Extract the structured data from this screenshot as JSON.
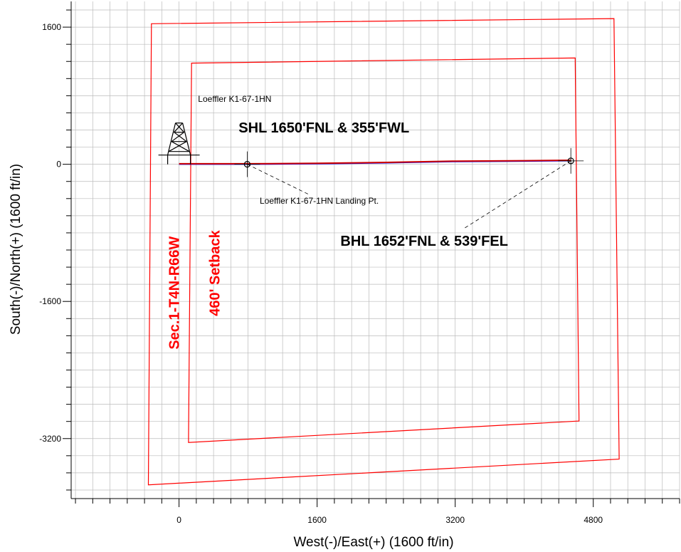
{
  "chart_data": {
    "type": "scatter",
    "xlabel": "West(-)/East(+) (1600 ft/in)",
    "ylabel": "South(-)/North(+) (1600 ft/in)",
    "x_range": [
      -1250,
      5800
    ],
    "y_range": [
      -3900,
      1900
    ],
    "x_ticks": [
      0,
      1600,
      3200,
      4800
    ],
    "y_ticks": [
      1600,
      0,
      -1600,
      -3200
    ],
    "grid": true,
    "colors": {
      "section": "#ff0000",
      "setback": "#ff0000",
      "plan": "#0000ff",
      "actual": "#cc0000",
      "grid": "#bbbbbb"
    },
    "series": [
      {
        "name": "Sec.1-T4N-R66W",
        "closed": true,
        "x": [
          -320,
          5040,
          5100,
          -355
        ],
        "y": [
          1640,
          1700,
          -3440,
          -3740
        ]
      },
      {
        "name": "460' Setback",
        "closed": true,
        "x": [
          145,
          4590,
          4635,
          110
        ],
        "y": [
          1180,
          1240,
          -2995,
          -3245
        ]
      },
      {
        "name": "Loeffler K1-67-1HN",
        "x": [
          0,
          790,
          1600,
          2400,
          3200,
          4000,
          4540
        ],
        "y": [
          0,
          0,
          5,
          15,
          30,
          35,
          40
        ]
      }
    ],
    "markers": [
      {
        "name": "surface-location",
        "x": 0,
        "y": 0
      },
      {
        "name": "landing-point",
        "x": 790,
        "y": 0
      },
      {
        "name": "bottom-hole",
        "x": 4540,
        "y": 40
      }
    ],
    "annotations": [
      {
        "text": "Loeffler K1-67-1HN",
        "x": 220,
        "y": 730,
        "style": "small"
      },
      {
        "text": "SHL 1650'FNL & 355'FWL",
        "x": 690,
        "y": 370,
        "style": "big"
      },
      {
        "text": "Loeffler K1-67-1HN Landing Pt.",
        "x": 935,
        "y": -460,
        "style": "small"
      },
      {
        "text": "BHL 1652'FNL & 539'FEL",
        "x": 1870,
        "y": -950,
        "style": "big"
      },
      {
        "text": "Sec.1-T4N-R66W",
        "x": 0,
        "y": -1500,
        "style": "red",
        "rotate": true
      },
      {
        "text": "460' Setback",
        "x": 470,
        "y": -1270,
        "style": "red",
        "rotate": true
      }
    ],
    "leaders": [
      {
        "from": [
          790,
          0
        ],
        "to": [
          1500,
          -350
        ]
      },
      {
        "from": [
          4540,
          40
        ],
        "to": [
          3300,
          -750
        ]
      }
    ]
  }
}
